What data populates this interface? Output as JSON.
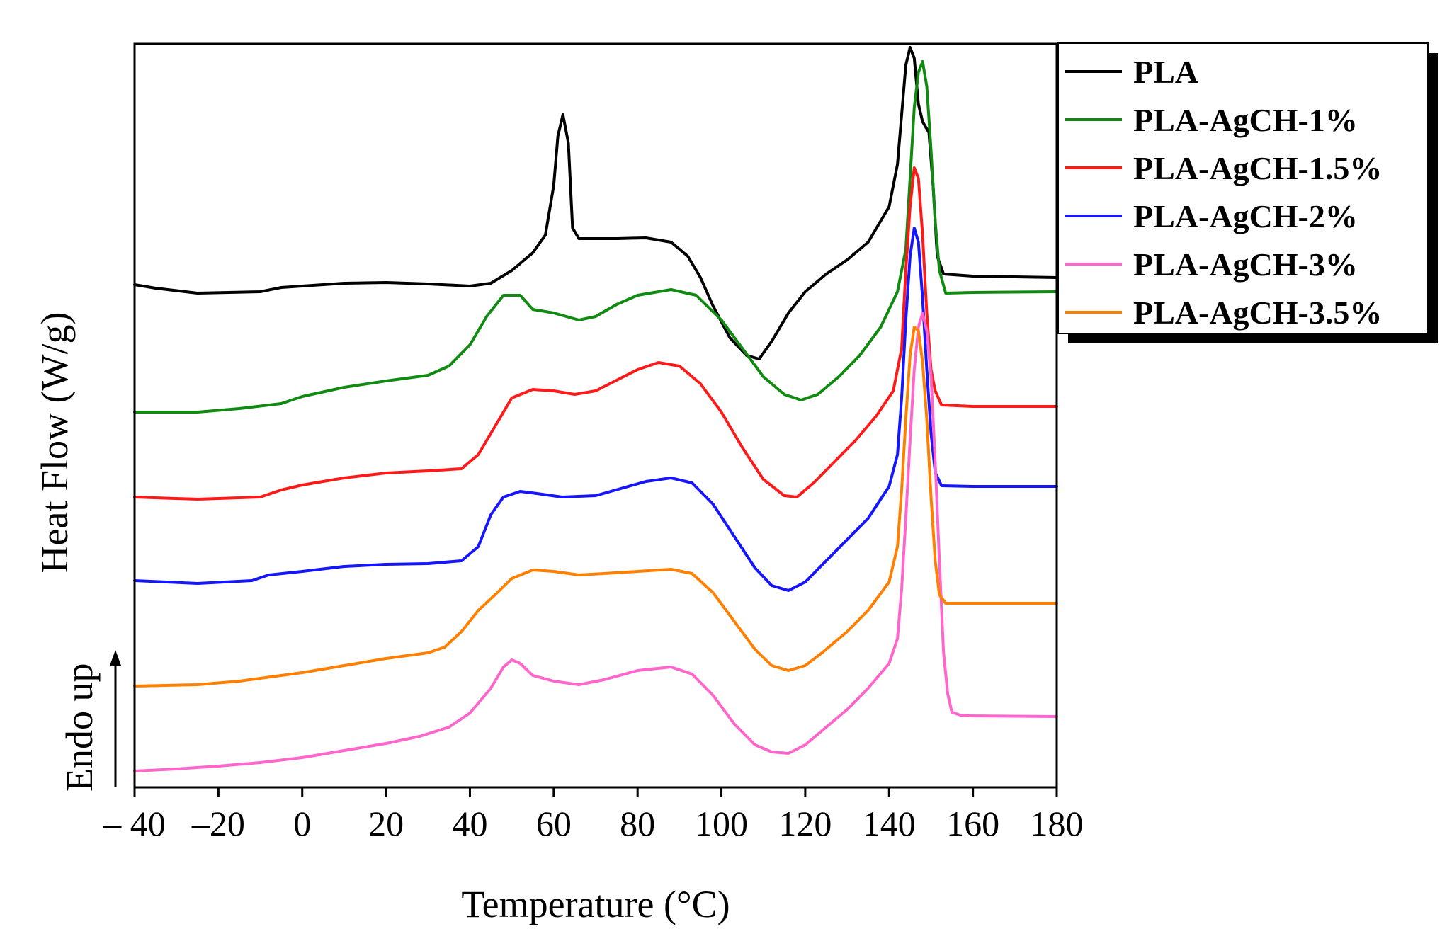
{
  "chart_data": {
    "type": "line",
    "title": "",
    "xlabel": "Temperature (°C)",
    "ylabel": "Heat Flow (W/g)",
    "annotation": "Endo up",
    "xlim": [
      -40,
      180
    ],
    "xticks": [
      -40,
      -20,
      0,
      20,
      40,
      60,
      80,
      100,
      120,
      140,
      160,
      180
    ],
    "xtick_labels": [
      "– 40",
      "–20",
      "0",
      "20",
      "40",
      "60",
      "80",
      "100",
      "120",
      "140",
      "160",
      "180"
    ],
    "ylim": [
      0,
      10.5
    ],
    "y_ticks_shown": false,
    "grid": false,
    "legend_position": "top-right, outside plot area",
    "series": [
      {
        "name": "PLA",
        "color": "#000000",
        "points": [
          [
            -40,
            7.1
          ],
          [
            -35,
            7.05
          ],
          [
            -25,
            6.98
          ],
          [
            -10,
            7.0
          ],
          [
            -5,
            7.06
          ],
          [
            0,
            7.08
          ],
          [
            10,
            7.12
          ],
          [
            20,
            7.13
          ],
          [
            30,
            7.11
          ],
          [
            40,
            7.08
          ],
          [
            45,
            7.12
          ],
          [
            50,
            7.3
          ],
          [
            55,
            7.55
          ],
          [
            58,
            7.8
          ],
          [
            60,
            8.5
          ],
          [
            61,
            9.2
          ],
          [
            62.2,
            9.5
          ],
          [
            63.5,
            9.1
          ],
          [
            64.5,
            7.9
          ],
          [
            66,
            7.75
          ],
          [
            75,
            7.75
          ],
          [
            82,
            7.76
          ],
          [
            88,
            7.7
          ],
          [
            92,
            7.5
          ],
          [
            95,
            7.2
          ],
          [
            98,
            6.8
          ],
          [
            102,
            6.35
          ],
          [
            106,
            6.1
          ],
          [
            109,
            6.05
          ],
          [
            112,
            6.3
          ],
          [
            116,
            6.7
          ],
          [
            120,
            7.0
          ],
          [
            125,
            7.25
          ],
          [
            130,
            7.45
          ],
          [
            135,
            7.7
          ],
          [
            140,
            8.2
          ],
          [
            142,
            8.8
          ],
          [
            143,
            9.5
          ],
          [
            144,
            10.2
          ],
          [
            145,
            10.45
          ],
          [
            146,
            10.3
          ],
          [
            147,
            9.65
          ],
          [
            148,
            9.4
          ],
          [
            149.5,
            9.25
          ],
          [
            150.5,
            8.5
          ],
          [
            151.5,
            7.5
          ],
          [
            153,
            7.25
          ],
          [
            160,
            7.22
          ],
          [
            180,
            7.2
          ]
        ]
      },
      {
        "name": "PLA-AgCH-1%",
        "color": "#108a10",
        "points": [
          [
            -40,
            5.3
          ],
          [
            -25,
            5.3
          ],
          [
            -15,
            5.35
          ],
          [
            -5,
            5.42
          ],
          [
            0,
            5.52
          ],
          [
            10,
            5.65
          ],
          [
            20,
            5.74
          ],
          [
            30,
            5.82
          ],
          [
            35,
            5.95
          ],
          [
            40,
            6.25
          ],
          [
            44,
            6.65
          ],
          [
            48,
            6.95
          ],
          [
            52,
            6.95
          ],
          [
            55,
            6.75
          ],
          [
            60,
            6.7
          ],
          [
            66,
            6.6
          ],
          [
            70,
            6.65
          ],
          [
            75,
            6.82
          ],
          [
            80,
            6.95
          ],
          [
            88,
            7.03
          ],
          [
            94,
            6.95
          ],
          [
            100,
            6.6
          ],
          [
            105,
            6.2
          ],
          [
            110,
            5.8
          ],
          [
            115,
            5.55
          ],
          [
            119,
            5.47
          ],
          [
            123,
            5.55
          ],
          [
            128,
            5.8
          ],
          [
            133,
            6.1
          ],
          [
            138,
            6.5
          ],
          [
            142,
            7.0
          ],
          [
            144,
            7.6
          ],
          [
            145,
            8.6
          ],
          [
            146,
            9.6
          ],
          [
            147,
            10.1
          ],
          [
            148,
            10.25
          ],
          [
            149,
            9.9
          ],
          [
            150,
            9.0
          ],
          [
            151,
            8.0
          ],
          [
            152,
            7.3
          ],
          [
            153.5,
            6.98
          ],
          [
            160,
            6.99
          ],
          [
            180,
            7.0
          ]
        ]
      },
      {
        "name": "PLA-AgCH-1.5%",
        "color": "#ff1a1a",
        "points": [
          [
            -40,
            4.1
          ],
          [
            -25,
            4.07
          ],
          [
            -10,
            4.1
          ],
          [
            -5,
            4.2
          ],
          [
            0,
            4.27
          ],
          [
            10,
            4.37
          ],
          [
            20,
            4.44
          ],
          [
            30,
            4.47
          ],
          [
            38,
            4.5
          ],
          [
            42,
            4.7
          ],
          [
            46,
            5.1
          ],
          [
            50,
            5.5
          ],
          [
            55,
            5.62
          ],
          [
            60,
            5.6
          ],
          [
            65,
            5.55
          ],
          [
            70,
            5.6
          ],
          [
            75,
            5.75
          ],
          [
            80,
            5.9
          ],
          [
            85,
            6.0
          ],
          [
            90,
            5.95
          ],
          [
            95,
            5.7
          ],
          [
            100,
            5.3
          ],
          [
            105,
            4.8
          ],
          [
            110,
            4.35
          ],
          [
            115,
            4.12
          ],
          [
            118,
            4.1
          ],
          [
            122,
            4.3
          ],
          [
            127,
            4.6
          ],
          [
            132,
            4.9
          ],
          [
            137,
            5.25
          ],
          [
            141,
            5.6
          ],
          [
            143,
            6.2
          ],
          [
            144,
            7.3
          ],
          [
            145,
            8.2
          ],
          [
            146,
            8.75
          ],
          [
            147,
            8.6
          ],
          [
            148,
            7.8
          ],
          [
            149,
            6.7
          ],
          [
            150,
            5.9
          ],
          [
            151,
            5.6
          ],
          [
            152.5,
            5.4
          ],
          [
            160,
            5.38
          ],
          [
            180,
            5.38
          ]
        ]
      },
      {
        "name": "PLA-AgCH-2%",
        "color": "#1515ff",
        "points": [
          [
            -40,
            2.92
          ],
          [
            -25,
            2.88
          ],
          [
            -12,
            2.92
          ],
          [
            -8,
            3.0
          ],
          [
            0,
            3.05
          ],
          [
            10,
            3.12
          ],
          [
            20,
            3.15
          ],
          [
            30,
            3.16
          ],
          [
            38,
            3.2
          ],
          [
            42,
            3.4
          ],
          [
            45,
            3.85
          ],
          [
            48,
            4.1
          ],
          [
            52,
            4.18
          ],
          [
            56,
            4.15
          ],
          [
            62,
            4.1
          ],
          [
            70,
            4.12
          ],
          [
            76,
            4.22
          ],
          [
            82,
            4.32
          ],
          [
            88,
            4.37
          ],
          [
            93,
            4.3
          ],
          [
            98,
            4.0
          ],
          [
            103,
            3.55
          ],
          [
            108,
            3.1
          ],
          [
            112,
            2.85
          ],
          [
            116,
            2.78
          ],
          [
            120,
            2.9
          ],
          [
            125,
            3.2
          ],
          [
            130,
            3.5
          ],
          [
            135,
            3.8
          ],
          [
            140,
            4.25
          ],
          [
            142,
            4.7
          ],
          [
            143,
            5.5
          ],
          [
            144,
            6.6
          ],
          [
            145,
            7.5
          ],
          [
            146,
            7.9
          ],
          [
            147,
            7.7
          ],
          [
            148,
            6.9
          ],
          [
            149,
            5.9
          ],
          [
            150,
            5.0
          ],
          [
            151,
            4.45
          ],
          [
            152.5,
            4.26
          ],
          [
            160,
            4.25
          ],
          [
            180,
            4.25
          ]
        ]
      },
      {
        "name": "PLA-AgCH-3%",
        "color": "#ff66cc",
        "points": [
          [
            -40,
            0.23
          ],
          [
            -30,
            0.26
          ],
          [
            -20,
            0.3
          ],
          [
            -10,
            0.35
          ],
          [
            0,
            0.42
          ],
          [
            10,
            0.52
          ],
          [
            20,
            0.62
          ],
          [
            28,
            0.72
          ],
          [
            35,
            0.85
          ],
          [
            40,
            1.05
          ],
          [
            45,
            1.4
          ],
          [
            48,
            1.7
          ],
          [
            50,
            1.8
          ],
          [
            52,
            1.75
          ],
          [
            55,
            1.58
          ],
          [
            60,
            1.5
          ],
          [
            66,
            1.45
          ],
          [
            72,
            1.52
          ],
          [
            80,
            1.65
          ],
          [
            88,
            1.7
          ],
          [
            93,
            1.6
          ],
          [
            98,
            1.3
          ],
          [
            103,
            0.9
          ],
          [
            108,
            0.6
          ],
          [
            112,
            0.5
          ],
          [
            116,
            0.48
          ],
          [
            120,
            0.6
          ],
          [
            125,
            0.85
          ],
          [
            130,
            1.1
          ],
          [
            135,
            1.4
          ],
          [
            140,
            1.75
          ],
          [
            142,
            2.1
          ],
          [
            143,
            2.8
          ],
          [
            144,
            3.8
          ],
          [
            145,
            4.9
          ],
          [
            146,
            5.9
          ],
          [
            147,
            6.5
          ],
          [
            148,
            6.7
          ],
          [
            149,
            6.45
          ],
          [
            150,
            5.8
          ],
          [
            151,
            4.6
          ],
          [
            152,
            3.2
          ],
          [
            153,
            1.9
          ],
          [
            154,
            1.32
          ],
          [
            155,
            1.06
          ],
          [
            157,
            1.02
          ],
          [
            160,
            1.01
          ],
          [
            180,
            1.0
          ]
        ]
      },
      {
        "name": "PLA-AgCH-3.5%",
        "color": "#ff8000",
        "points": [
          [
            -40,
            1.43
          ],
          [
            -25,
            1.45
          ],
          [
            -15,
            1.5
          ],
          [
            -5,
            1.58
          ],
          [
            0,
            1.62
          ],
          [
            10,
            1.72
          ],
          [
            20,
            1.82
          ],
          [
            30,
            1.9
          ],
          [
            34,
            1.98
          ],
          [
            38,
            2.2
          ],
          [
            42,
            2.5
          ],
          [
            46,
            2.72
          ],
          [
            50,
            2.95
          ],
          [
            55,
            3.07
          ],
          [
            60,
            3.05
          ],
          [
            66,
            3.0
          ],
          [
            72,
            3.02
          ],
          [
            80,
            3.05
          ],
          [
            88,
            3.08
          ],
          [
            93,
            3.02
          ],
          [
            98,
            2.75
          ],
          [
            103,
            2.35
          ],
          [
            108,
            1.95
          ],
          [
            112,
            1.72
          ],
          [
            116,
            1.65
          ],
          [
            120,
            1.72
          ],
          [
            124,
            1.9
          ],
          [
            130,
            2.2
          ],
          [
            135,
            2.5
          ],
          [
            140,
            2.9
          ],
          [
            142,
            3.4
          ],
          [
            143,
            4.2
          ],
          [
            144,
            5.2
          ],
          [
            145,
            6.1
          ],
          [
            146,
            6.5
          ],
          [
            147,
            6.45
          ],
          [
            148,
            6.0
          ],
          [
            149,
            5.2
          ],
          [
            150,
            4.1
          ],
          [
            151,
            3.2
          ],
          [
            152,
            2.72
          ],
          [
            153.5,
            2.6
          ],
          [
            160,
            2.6
          ],
          [
            180,
            2.6
          ]
        ]
      }
    ]
  }
}
